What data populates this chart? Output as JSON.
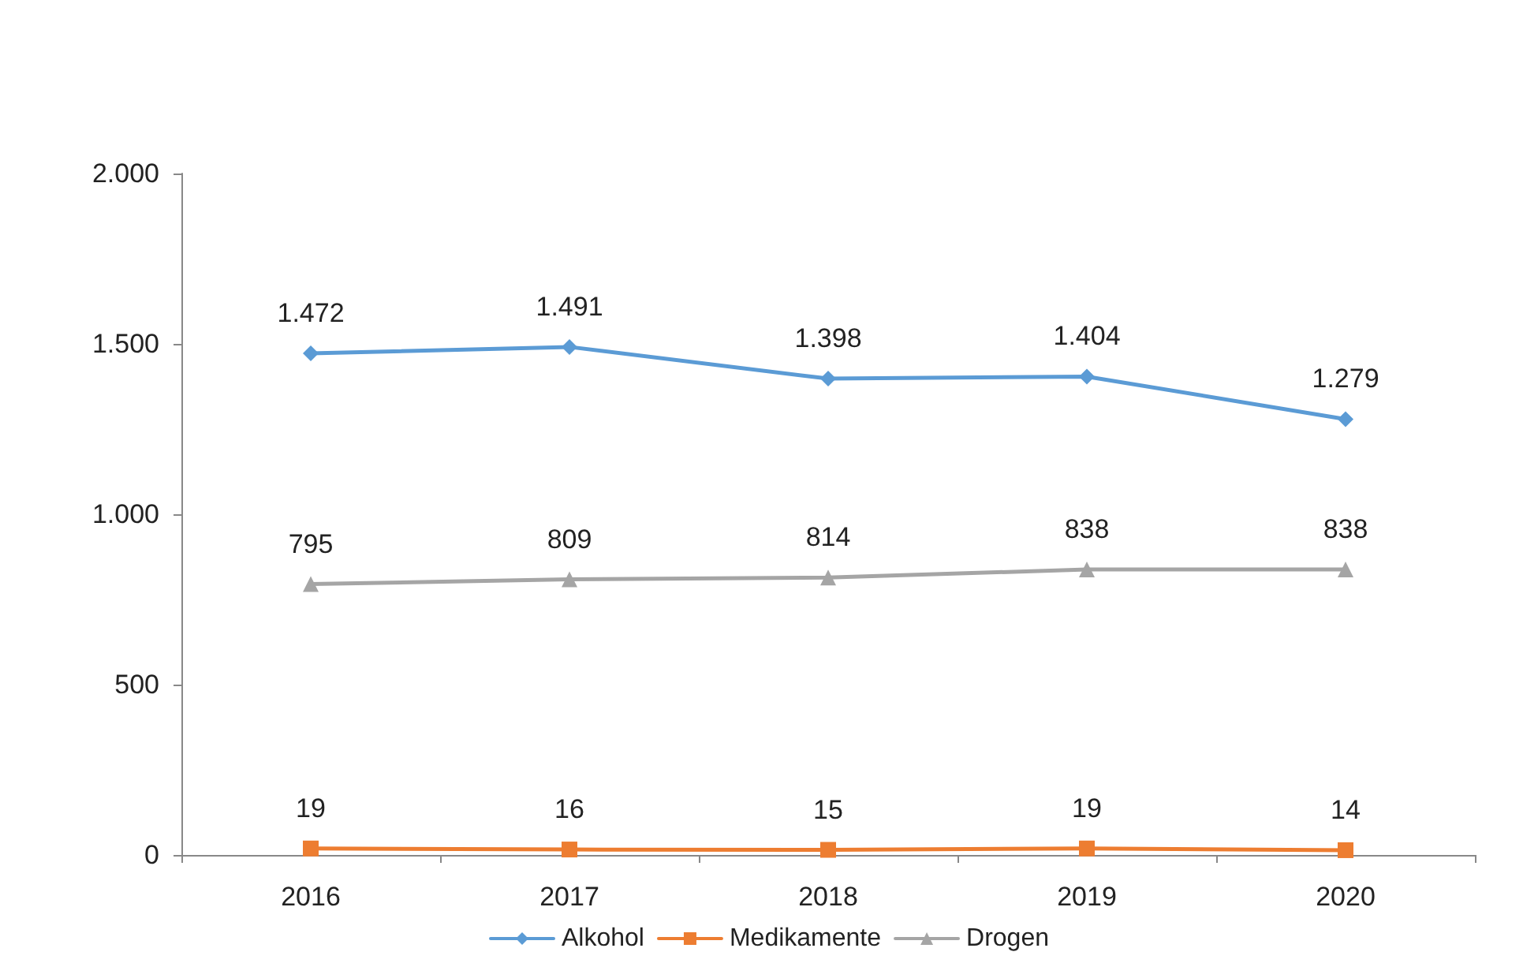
{
  "chart_data": {
    "type": "line",
    "categories": [
      "2016",
      "2017",
      "2018",
      "2019",
      "2020"
    ],
    "series": [
      {
        "name": "Alkohol",
        "color": "#5b9bd5",
        "marker": "diamond",
        "values": [
          1472,
          1491,
          1398,
          1404,
          1279
        ],
        "value_labels": [
          "1.472",
          "1.491",
          "1.398",
          "1.404",
          "1.279"
        ]
      },
      {
        "name": "Medikamente",
        "color": "#ed7d31",
        "marker": "square",
        "values": [
          19,
          16,
          15,
          19,
          14
        ],
        "value_labels": [
          "19",
          "16",
          "15",
          "19",
          "14"
        ]
      },
      {
        "name": "Drogen",
        "color": "#a5a5a5",
        "marker": "triangle",
        "values": [
          795,
          809,
          814,
          838,
          838
        ],
        "value_labels": [
          "795",
          "809",
          "814",
          "838",
          "838"
        ]
      }
    ],
    "ylim": [
      0,
      2000
    ],
    "yticks": [
      {
        "value": 0,
        "label": "0"
      },
      {
        "value": 500,
        "label": "500"
      },
      {
        "value": 1000,
        "label": "1.000"
      },
      {
        "value": 1500,
        "label": "1.500"
      },
      {
        "value": 2000,
        "label": "2.000"
      }
    ],
    "grid": false,
    "legend": "bottom",
    "line_style": "solid"
  }
}
